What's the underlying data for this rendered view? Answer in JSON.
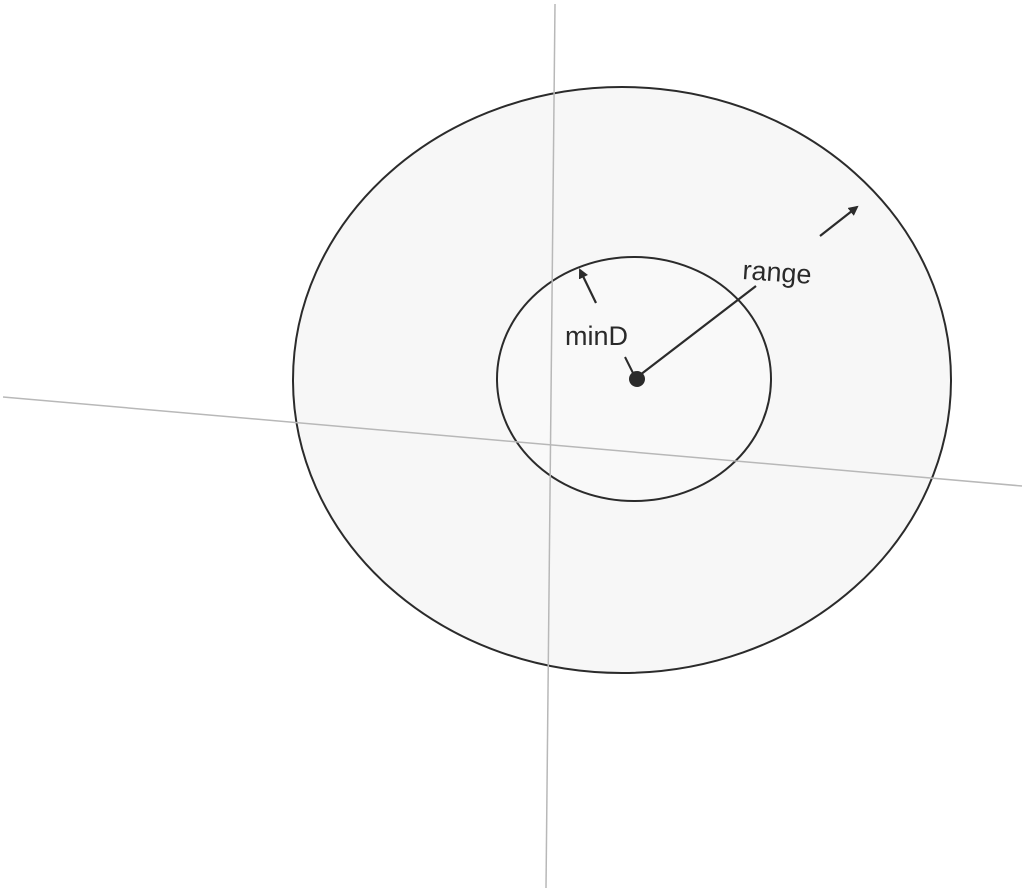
{
  "labels": {
    "min_distance": "minD",
    "range": "range"
  },
  "colors": {
    "background": "#ffffff",
    "ring_fill": "#f7f7f7",
    "inner_fill": "#f9f9f9",
    "stroke": "#2b2b2b",
    "axis": "#b8b8b8",
    "text": "#2a2a2a"
  }
}
